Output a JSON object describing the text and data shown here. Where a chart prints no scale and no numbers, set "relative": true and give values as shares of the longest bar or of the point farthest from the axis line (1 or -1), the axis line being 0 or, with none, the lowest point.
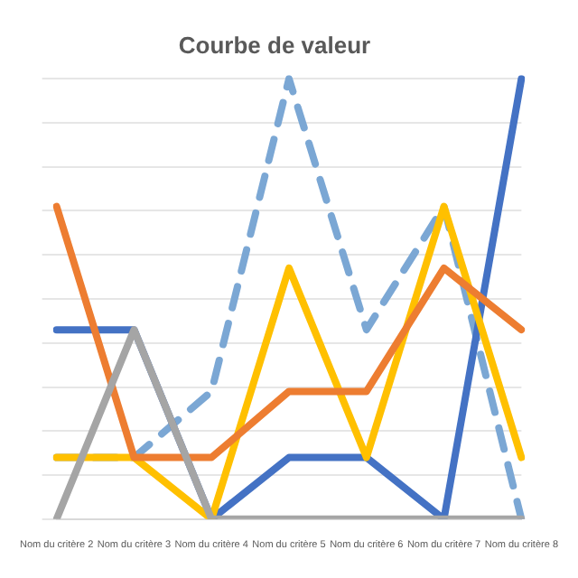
{
  "chart_data": {
    "type": "line",
    "title": "Courbe de valeur",
    "relative": true,
    "grid": "y",
    "marker": "none",
    "legend": false,
    "categories": [
      "Nom du critère 2",
      "Nom du critère 3",
      "Nom du critère 4",
      "Nom du critère 5",
      "Nom du critère 6",
      "Nom du critère 7",
      "Nom du critère 8"
    ],
    "series": [
      {
        "color": "#a5a5a5",
        "values": [
          0,
          0.43,
          0,
          0,
          0,
          0,
          0
        ]
      },
      {
        "color": "#ed7d31",
        "values": [
          0.71,
          0.14,
          0.14,
          0.29,
          0.29,
          0.57,
          0.43
        ]
      },
      {
        "color": "#ffc000",
        "values": [
          0.14,
          0.14,
          0,
          0.57,
          0.14,
          0.71,
          0.14
        ]
      },
      {
        "color": "#4472c4",
        "values": [
          0.43,
          0.43,
          0,
          0.14,
          0.14,
          0,
          1
        ]
      },
      {
        "color": "#7ba7d4",
        "line_style": "dashed",
        "values": [
          0.14,
          0.14,
          0.29,
          1,
          0.43,
          0.71,
          0
        ]
      }
    ]
  }
}
